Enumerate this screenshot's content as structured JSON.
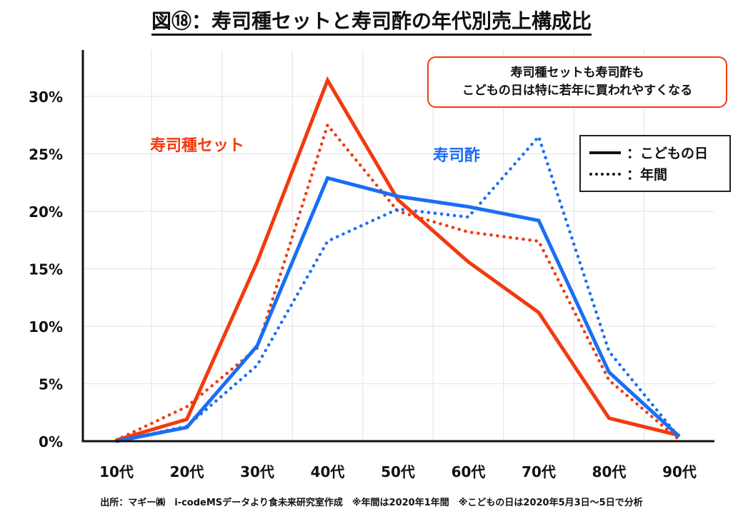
{
  "title": "図⑱：寿司種セットと寿司酢の年代別売上構成比",
  "callout": {
    "line1": "寿司種セットも寿司酢も",
    "line2": "こどもの日は特に若年に買われやすくなる"
  },
  "legend": {
    "solid_label": "：こどもの日",
    "dotted_label": "：年間"
  },
  "series_labels": {
    "sushi_set": "寿司種セット",
    "sushi_vinegar": "寿司酢"
  },
  "footnote": "出所：マギー㈱　i-codeMSデータより食未来研究室作成　※年間は2020年1年間　※こどもの日は2020年5月3日～5日で分析",
  "colors": {
    "sushi_set": "#f23a0e",
    "sushi_vinegar": "#1a6ef5",
    "axis": "#111111",
    "grid": "#e6e6e6"
  },
  "chart_data": {
    "type": "line",
    "title": "図⑱：寿司種セットと寿司酢の年代別売上構成比",
    "xlabel": "",
    "ylabel": "",
    "categories": [
      "10代",
      "20代",
      "30代",
      "40代",
      "50代",
      "60代",
      "70代",
      "80代",
      "90代"
    ],
    "yticks": [
      "0%",
      "5%",
      "10%",
      "15%",
      "20%",
      "25%",
      "30%"
    ],
    "ytick_values": [
      0,
      5,
      10,
      15,
      20,
      25,
      30
    ],
    "ylim": [
      0,
      30
    ],
    "grid": true,
    "legend_position": "top-right",
    "series": [
      {
        "name": "寿司種セット（こどもの日）",
        "group": "sushi_set",
        "style": "solid",
        "values": [
          0.1,
          1.9,
          15.6,
          31.4,
          21.0,
          15.6,
          11.2,
          2.0,
          0.5
        ]
      },
      {
        "name": "寿司種セット（年間）",
        "group": "sushi_set",
        "style": "dotted",
        "values": [
          0.1,
          3.0,
          8.1,
          27.5,
          20.0,
          18.2,
          17.4,
          5.3,
          0.1
        ]
      },
      {
        "name": "寿司酢（こどもの日）",
        "group": "sushi_vinegar",
        "style": "solid",
        "values": [
          0.0,
          1.2,
          8.3,
          22.9,
          21.3,
          20.4,
          19.2,
          6.0,
          0.4
        ]
      },
      {
        "name": "寿司酢（年間）",
        "group": "sushi_vinegar",
        "style": "dotted",
        "values": [
          0.0,
          1.3,
          6.6,
          17.4,
          20.2,
          19.5,
          26.5,
          7.8,
          0.3
        ]
      }
    ]
  }
}
